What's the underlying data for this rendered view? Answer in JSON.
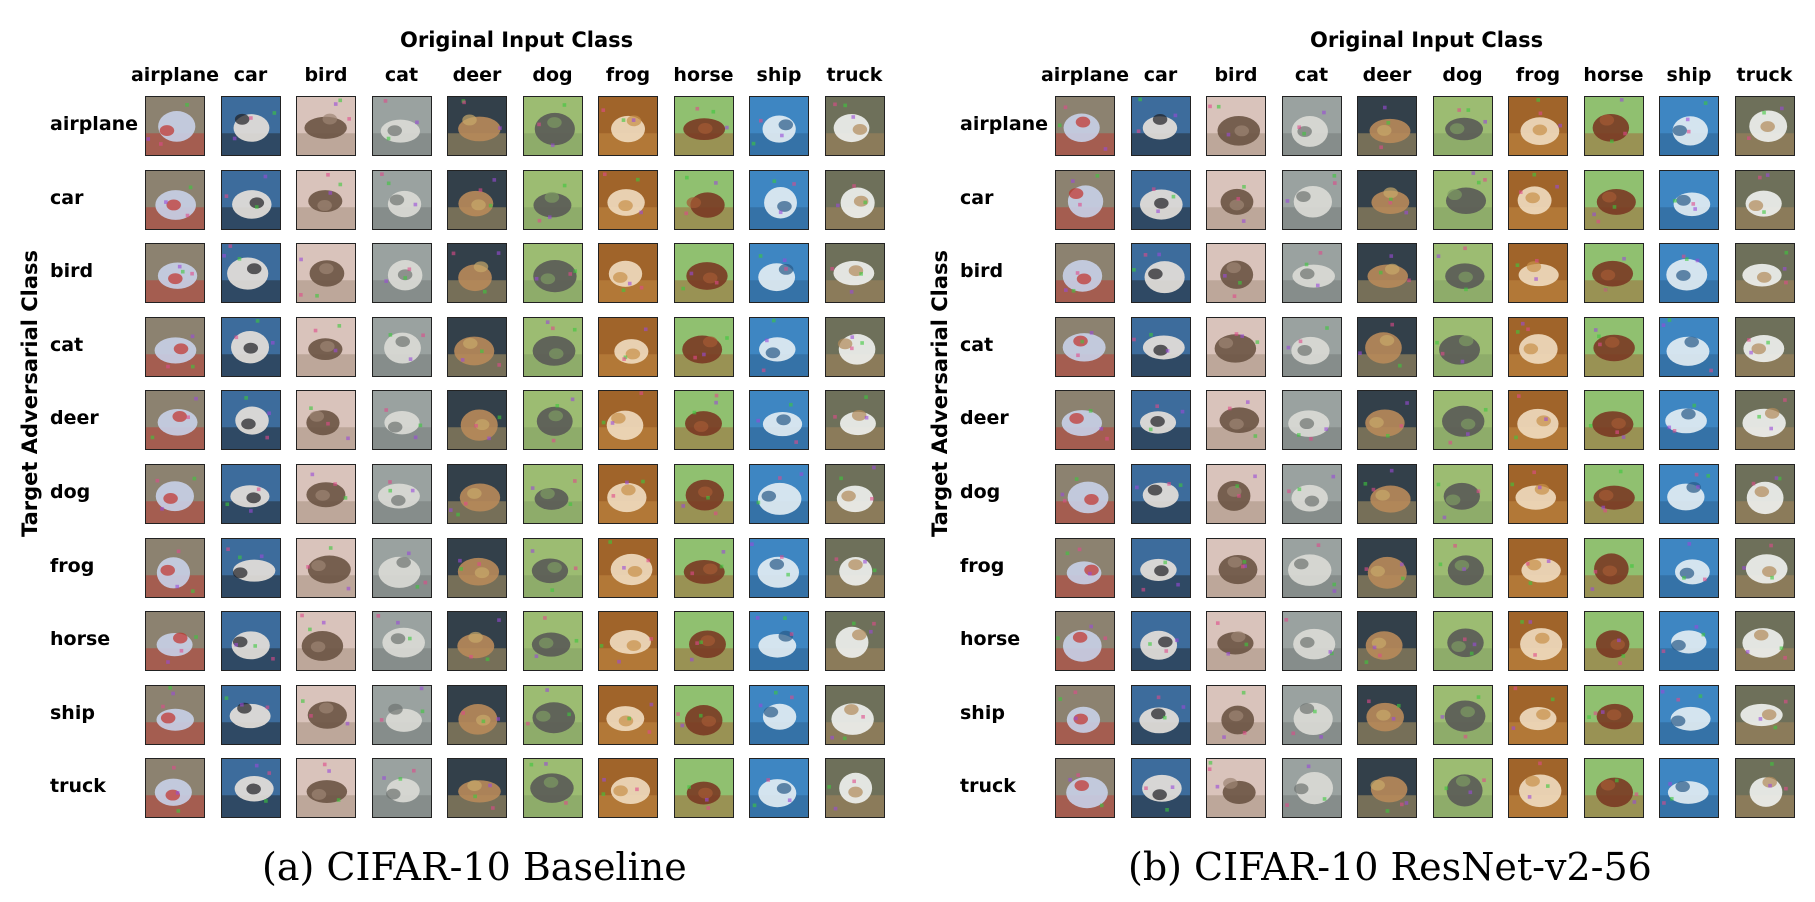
{
  "panels": [
    {
      "id": "a",
      "column_axis_title": "Original Input Class",
      "row_axis_title": "Target Adversarial Class",
      "caption": "(a) CIFAR-10 Baseline"
    },
    {
      "id": "b",
      "column_axis_title": "Original Input Class",
      "row_axis_title": "Target Adversarial Class",
      "caption": "(b) CIFAR-10 ResNet-v2-56"
    }
  ],
  "classes": [
    "airplane",
    "car",
    "bird",
    "cat",
    "deer",
    "dog",
    "frog",
    "horse",
    "ship",
    "truck"
  ],
  "thumbnail_palettes": {
    "airplane": {
      "bg": "#8c8270",
      "fg": "#c8d0e8",
      "accent": "#c0302a"
    },
    "car": {
      "bg": "#3d6c9c",
      "fg": "#e8e2dc",
      "accent": "#1e1e22"
    },
    "bird": {
      "bg": "#d9c3bb",
      "fg": "#6a5444",
      "accent": "#9c8474"
    },
    "cat": {
      "bg": "#9aa2a0",
      "fg": "#dcdcd6",
      "accent": "#6e7470"
    },
    "deer": {
      "bg": "#33404a",
      "fg": "#b88a5a",
      "accent": "#c8a86a"
    },
    "dog": {
      "bg": "#9cbc72",
      "fg": "#5a5a56",
      "accent": "#7e9a62"
    },
    "frog": {
      "bg": "#a0642a",
      "fg": "#f0dcc0",
      "accent": "#c89048"
    },
    "horse": {
      "bg": "#90c070",
      "fg": "#7a3a24",
      "accent": "#a45a34"
    },
    "ship": {
      "bg": "#3e86c2",
      "fg": "#e4eef4",
      "accent": "#2a5a88"
    },
    "truck": {
      "bg": "#6e705a",
      "fg": "#f0f2f0",
      "accent": "#b08a5a"
    }
  }
}
